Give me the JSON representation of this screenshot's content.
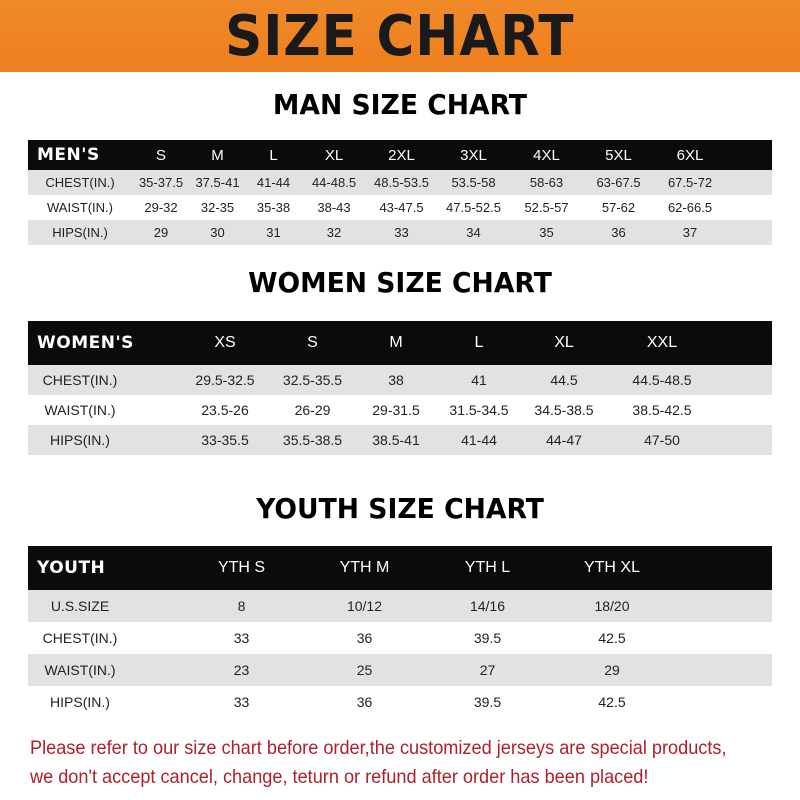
{
  "title": "SIZE CHART",
  "colors": {
    "banner": "#ee7f1c",
    "header_row": "#0c0a0a",
    "stripe": "#e2e2e2",
    "notice": "#b0202a"
  },
  "men": {
    "title": "MAN SIZE CHART",
    "header": [
      "MEN'S",
      "S",
      "M",
      "L",
      "XL",
      "2XL",
      "3XL",
      "4XL",
      "5XL",
      "6XL"
    ],
    "rows": [
      [
        "CHEST(IN.)",
        "35-37.5",
        "37.5-41",
        "41-44",
        "44-48.5",
        "48.5-53.5",
        "53.5-58",
        "58-63",
        "63-67.5",
        "67.5-72"
      ],
      [
        "WAIST(IN.)",
        "29-32",
        "32-35",
        "35-38",
        "38-43",
        "43-47.5",
        "47.5-52.5",
        "52.5-57",
        "57-62",
        "62-66.5"
      ],
      [
        "HIPS(IN.)",
        "29",
        "30",
        "31",
        "32",
        "33",
        "34",
        "35",
        "36",
        "37"
      ]
    ]
  },
  "women": {
    "title": "WOMEN SIZE CHART",
    "header": [
      "WOMEN'S",
      "XS",
      "S",
      "M",
      "L",
      "XL",
      "XXL"
    ],
    "rows": [
      [
        "CHEST(IN.)",
        "29.5-32.5",
        "32.5-35.5",
        "38",
        "41",
        "44.5",
        "44.5-48.5"
      ],
      [
        "WAIST(IN.)",
        "23.5-26",
        "26-29",
        "29-31.5",
        "31.5-34.5",
        "34.5-38.5",
        "38.5-42.5"
      ],
      [
        "HIPS(IN.)",
        "33-35.5",
        "35.5-38.5",
        "38.5-41",
        "41-44",
        "44-47",
        "47-50"
      ]
    ]
  },
  "youth": {
    "title": "YOUTH SIZE CHART",
    "header": [
      "YOUTH",
      "YTH S",
      "YTH M",
      "YTH L",
      "YTH XL"
    ],
    "rows": [
      [
        "U.S.SIZE",
        "8",
        "10/12",
        "14/16",
        "18/20"
      ],
      [
        "CHEST(IN.)",
        "33",
        "36",
        "39.5",
        "42.5"
      ],
      [
        "WAIST(IN.)",
        "23",
        "25",
        "27",
        "29"
      ],
      [
        "HIPS(IN.)",
        "33",
        "36",
        "39.5",
        "42.5"
      ]
    ]
  },
  "notice": [
    "Please refer to our size chart before order,the customized jerseys are special products,",
    "we don't accept cancel, change, teturn or refund after order has been placed!"
  ]
}
